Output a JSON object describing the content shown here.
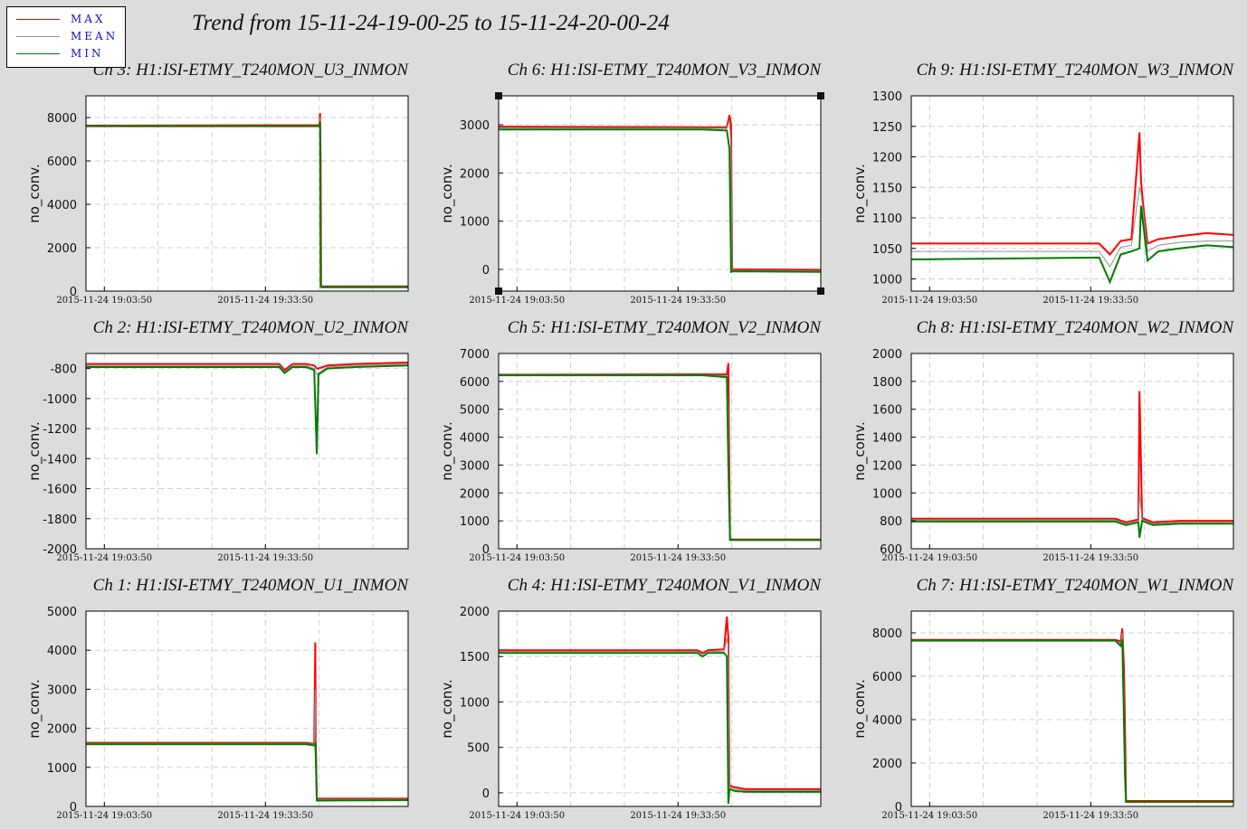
{
  "title": "Trend from 15-11-24-19-00-25 to 15-11-24-20-00-24",
  "legend": [
    {
      "label": "MAX",
      "color": "#ff0000"
    },
    {
      "label": "MEAN",
      "color": "#909090"
    },
    {
      "label": "MIN",
      "color": "#007a00"
    }
  ],
  "chart_data": [
    {
      "type": "line",
      "title": "Ch 3: H1:ISI-ETMY_T240MON_U3_INMON",
      "ylabel": "no_conv.",
      "ylim": [
        0,
        9000
      ],
      "yticks": [
        0,
        2000,
        4000,
        6000,
        8000
      ],
      "xticks": [
        "2015-11-24 19:03:50",
        "2015-11-24 19:33:50"
      ],
      "grid": true,
      "x_minutes": [
        0,
        43.5,
        43.6,
        43.7,
        43.8,
        60
      ],
      "series": [
        {
          "name": "MAX",
          "values": [
            7630,
            7650,
            8200,
            6000,
            220,
            220
          ]
        },
        {
          "name": "MEAN",
          "values": [
            7620,
            7630,
            8000,
            4000,
            200,
            200
          ]
        },
        {
          "name": "MIN",
          "values": [
            7600,
            7600,
            7800,
            200,
            180,
            180
          ]
        }
      ]
    },
    {
      "type": "line",
      "title": "Ch 6: H1:ISI-ETMY_T240MON_V3_INMON",
      "ylabel": "no_conv.",
      "ylim": [
        -450,
        3600
      ],
      "yticks": [
        0,
        1000,
        2000,
        3000
      ],
      "xticks": [
        "2015-11-24 19:03:50",
        "2015-11-24 19:33:50"
      ],
      "grid": true,
      "x_minutes": [
        0,
        38,
        42.5,
        43,
        43.3,
        43.5,
        60
      ],
      "series": [
        {
          "name": "MAX",
          "values": [
            2960,
            2950,
            2950,
            3200,
            3000,
            0,
            -10
          ]
        },
        {
          "name": "MEAN",
          "values": [
            2930,
            2930,
            2920,
            3100,
            2500,
            -20,
            -30
          ]
        },
        {
          "name": "MIN",
          "values": [
            2900,
            2900,
            2880,
            2500,
            -50,
            -40,
            -50
          ]
        }
      ]
    },
    {
      "type": "line",
      "title": "Ch 9: H1:ISI-ETMY_T240MON_W3_INMON",
      "ylabel": "no_conv.",
      "ylim": [
        980,
        1300
      ],
      "yticks": [
        1000,
        1050,
        1100,
        1150,
        1200,
        1250,
        1300
      ],
      "xticks": [
        "2015-11-24 19:03:50",
        "2015-11-24 19:33:50"
      ],
      "grid": true,
      "x_minutes": [
        0,
        35,
        37,
        39,
        41,
        42.5,
        42.8,
        43.2,
        44,
        46,
        50,
        55,
        60
      ],
      "series": [
        {
          "name": "MAX",
          "values": [
            1058,
            1058,
            1040,
            1062,
            1065,
            1240,
            1160,
            1120,
            1058,
            1065,
            1070,
            1075,
            1072
          ]
        },
        {
          "name": "MEAN",
          "values": [
            1045,
            1045,
            1020,
            1052,
            1055,
            1150,
            1140,
            1110,
            1045,
            1055,
            1060,
            1062,
            1062
          ]
        },
        {
          "name": "MIN",
          "values": [
            1032,
            1035,
            995,
            1040,
            1045,
            1050,
            1120,
            1090,
            1030,
            1045,
            1050,
            1055,
            1052
          ]
        }
      ]
    },
    {
      "type": "line",
      "title": "Ch 2: H1:ISI-ETMY_T240MON_U2_INMON",
      "ylabel": "no_conv.",
      "ylim": [
        -2000,
        -700
      ],
      "yticks": [
        -2000,
        -1800,
        -1600,
        -1400,
        -1200,
        -1000,
        -800
      ],
      "xticks": [
        "2015-11-24 19:03:50",
        "2015-11-24 19:33:50"
      ],
      "grid": true,
      "x_minutes": [
        0,
        36,
        37,
        38.5,
        41,
        42.5,
        43,
        43.3,
        45,
        50,
        60
      ],
      "series": [
        {
          "name": "MAX",
          "values": [
            -770,
            -770,
            -810,
            -770,
            -770,
            -780,
            -800,
            -800,
            -780,
            -770,
            -760
          ]
        },
        {
          "name": "MEAN",
          "values": [
            -780,
            -780,
            -820,
            -780,
            -780,
            -800,
            -840,
            -830,
            -790,
            -780,
            -770
          ]
        },
        {
          "name": "MIN",
          "values": [
            -790,
            -790,
            -830,
            -790,
            -790,
            -810,
            -1370,
            -840,
            -800,
            -790,
            -780
          ]
        }
      ]
    },
    {
      "type": "line",
      "title": "Ch 5: H1:ISI-ETMY_T240MON_V2_INMON",
      "ylabel": "no_conv.",
      "ylim": [
        0,
        7000
      ],
      "yticks": [
        0,
        1000,
        2000,
        3000,
        4000,
        5000,
        6000,
        7000
      ],
      "xticks": [
        "2015-11-24 19:03:50",
        "2015-11-24 19:33:50"
      ],
      "grid": true,
      "x_minutes": [
        0,
        38,
        42.5,
        42.8,
        43.1,
        60
      ],
      "series": [
        {
          "name": "MAX",
          "values": [
            6240,
            6250,
            6250,
            6650,
            330,
            330
          ]
        },
        {
          "name": "MEAN",
          "values": [
            6230,
            6230,
            6200,
            5000,
            320,
            320
          ]
        },
        {
          "name": "MIN",
          "values": [
            6220,
            6220,
            6150,
            3000,
            310,
            310
          ]
        }
      ]
    },
    {
      "type": "line",
      "title": "Ch 8: H1:ISI-ETMY_T240MON_W2_INMON",
      "ylabel": "no_conv.",
      "ylim": [
        600,
        2000
      ],
      "yticks": [
        600,
        800,
        1000,
        1200,
        1400,
        1600,
        1800,
        2000
      ],
      "xticks": [
        "2015-11-24 19:03:50",
        "2015-11-24 19:33:50"
      ],
      "grid": true,
      "x_minutes": [
        0,
        38,
        40,
        42.3,
        42.5,
        43,
        45,
        50,
        60
      ],
      "series": [
        {
          "name": "MAX",
          "values": [
            815,
            815,
            790,
            810,
            1730,
            820,
            790,
            800,
            800
          ]
        },
        {
          "name": "MEAN",
          "values": [
            805,
            805,
            780,
            800,
            1000,
            810,
            780,
            790,
            790
          ]
        },
        {
          "name": "MIN",
          "values": [
            795,
            795,
            770,
            790,
            680,
            800,
            770,
            780,
            780
          ]
        }
      ]
    },
    {
      "type": "line",
      "title": "Ch 1: H1:ISI-ETMY_T240MON_U1_INMON",
      "ylabel": "no_conv.",
      "ylim": [
        0,
        5000
      ],
      "yticks": [
        0,
        1000,
        2000,
        3000,
        4000,
        5000
      ],
      "xticks": [
        "2015-11-24 19:03:50",
        "2015-11-24 19:33:50"
      ],
      "grid": true,
      "x_minutes": [
        0,
        41,
        42.5,
        42.7,
        42.8,
        43,
        60
      ],
      "series": [
        {
          "name": "MAX",
          "values": [
            1630,
            1630,
            1600,
            4200,
            1700,
            200,
            200
          ]
        },
        {
          "name": "MEAN",
          "values": [
            1610,
            1610,
            1580,
            3000,
            1500,
            180,
            180
          ]
        },
        {
          "name": "MIN",
          "values": [
            1590,
            1590,
            1560,
            1600,
            1300,
            150,
            160
          ]
        }
      ]
    },
    {
      "type": "line",
      "title": "Ch 4: H1:ISI-ETMY_T240MON_V1_INMON",
      "ylabel": "no_conv.",
      "ylim": [
        -150,
        2000
      ],
      "yticks": [
        0,
        500,
        1000,
        1500,
        2000
      ],
      "xticks": [
        "2015-11-24 19:03:50",
        "2015-11-24 19:33:50"
      ],
      "grid": true,
      "x_minutes": [
        0,
        37,
        38,
        39,
        42,
        42.5,
        42.8,
        43,
        44,
        46,
        60
      ],
      "series": [
        {
          "name": "MAX",
          "values": [
            1570,
            1570,
            1540,
            1570,
            1580,
            1940,
            1700,
            80,
            60,
            40,
            40
          ]
        },
        {
          "name": "MEAN",
          "values": [
            1555,
            1555,
            1525,
            1555,
            1560,
            1700,
            1600,
            60,
            40,
            25,
            25
          ]
        },
        {
          "name": "MIN",
          "values": [
            1540,
            1540,
            1500,
            1540,
            1540,
            1500,
            -120,
            40,
            20,
            10,
            10
          ]
        }
      ]
    },
    {
      "type": "line",
      "title": "Ch 7: H1:ISI-ETMY_T240MON_W1_INMON",
      "ylabel": "no_conv.",
      "ylim": [
        0,
        9000
      ],
      "yticks": [
        0,
        2000,
        4000,
        6000,
        8000
      ],
      "xticks": [
        "2015-11-24 19:03:50",
        "2015-11-24 19:33:50"
      ],
      "grid": true,
      "x_minutes": [
        0,
        38,
        39,
        39.3,
        39.6,
        39.8,
        40,
        60
      ],
      "series": [
        {
          "name": "MAX",
          "values": [
            7680,
            7680,
            7600,
            8200,
            6400,
            4000,
            250,
            250
          ]
        },
        {
          "name": "MEAN",
          "values": [
            7660,
            7660,
            7500,
            8000,
            5500,
            3000,
            230,
            230
          ]
        },
        {
          "name": "MIN",
          "values": [
            7640,
            7640,
            7400,
            7700,
            4000,
            1500,
            210,
            210
          ]
        }
      ]
    }
  ]
}
